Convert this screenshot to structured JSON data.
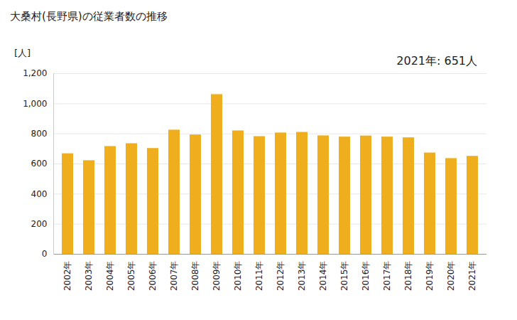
{
  "chart_data": {
    "type": "bar",
    "title": "大桑村(長野県)の従業者数の推移",
    "y_label": "[人]",
    "annotation": "2021年: 651人",
    "categories": [
      "2002年",
      "2003年",
      "2004年",
      "2005年",
      "2006年",
      "2007年",
      "2008年",
      "2009年",
      "2010年",
      "2011年",
      "2012年",
      "2013年",
      "2014年",
      "2015年",
      "2016年",
      "2017年",
      "2018年",
      "2019年",
      "2020年",
      "2021年"
    ],
    "values": [
      668,
      622,
      716,
      735,
      703,
      825,
      793,
      1061,
      820,
      782,
      806,
      810,
      787,
      779,
      786,
      779,
      774,
      673,
      636,
      651
    ],
    "color": "#efae1d",
    "ylim": [
      0,
      1200
    ],
    "yticks": [
      0,
      200,
      400,
      600,
      800,
      {
        "value": 1000,
        "label": "1,000"
      },
      {
        "value": 1200,
        "label": "1,200"
      }
    ],
    "grid": true
  }
}
